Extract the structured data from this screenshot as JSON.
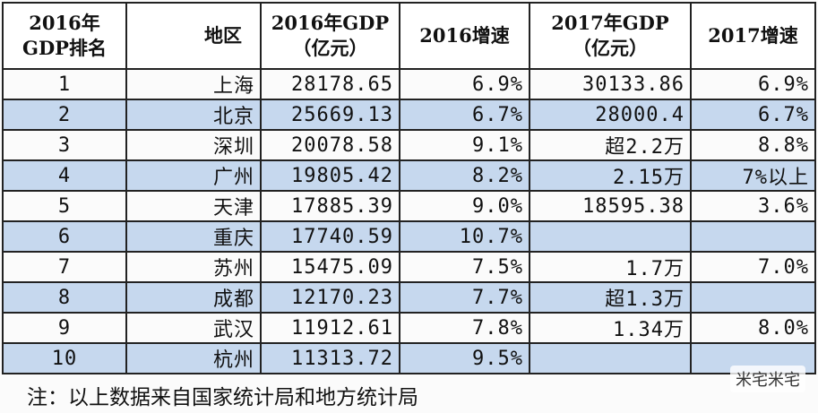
{
  "table": {
    "headers": [
      [
        "2016年",
        "GDP排名"
      ],
      [
        "地区"
      ],
      [
        "2016年GDP",
        "（亿元）"
      ],
      [
        "2016增速"
      ],
      [
        "2017年GDP",
        "（亿元）"
      ],
      [
        "2017增速"
      ]
    ],
    "rows": [
      [
        "1",
        "上海",
        "28178.65",
        "6.9%",
        "30133.86",
        "6.9%"
      ],
      [
        "2",
        "北京",
        "25669.13",
        "6.7%",
        "28000.4",
        "6.7%"
      ],
      [
        "3",
        "深圳",
        "20078.58",
        "9.1%",
        "超2.2万",
        "8.8%"
      ],
      [
        "4",
        "广州",
        "19805.42",
        "8.2%",
        "2.15万",
        "7%以上"
      ],
      [
        "5",
        "天津",
        "17885.39",
        "9.0%",
        "18595.38",
        "3.6%"
      ],
      [
        "6",
        "重庆",
        "17740.59",
        "10.7%",
        null,
        null
      ],
      [
        "7",
        "苏州",
        "15475.09",
        "7.5%",
        "1.7万",
        "7.0%"
      ],
      [
        "8",
        "成都",
        "12170.23",
        "7.7%",
        "超1.3万",
        null
      ],
      [
        "9",
        "武汉",
        "11912.61",
        "7.8%",
        "1.34万",
        "8.0%"
      ],
      [
        "10",
        "杭州",
        "11313.72",
        "9.5%",
        null,
        null
      ]
    ]
  },
  "note": "注：以上数据来自国家统计局和地方统计局",
  "watermark": "米宅米宅"
}
